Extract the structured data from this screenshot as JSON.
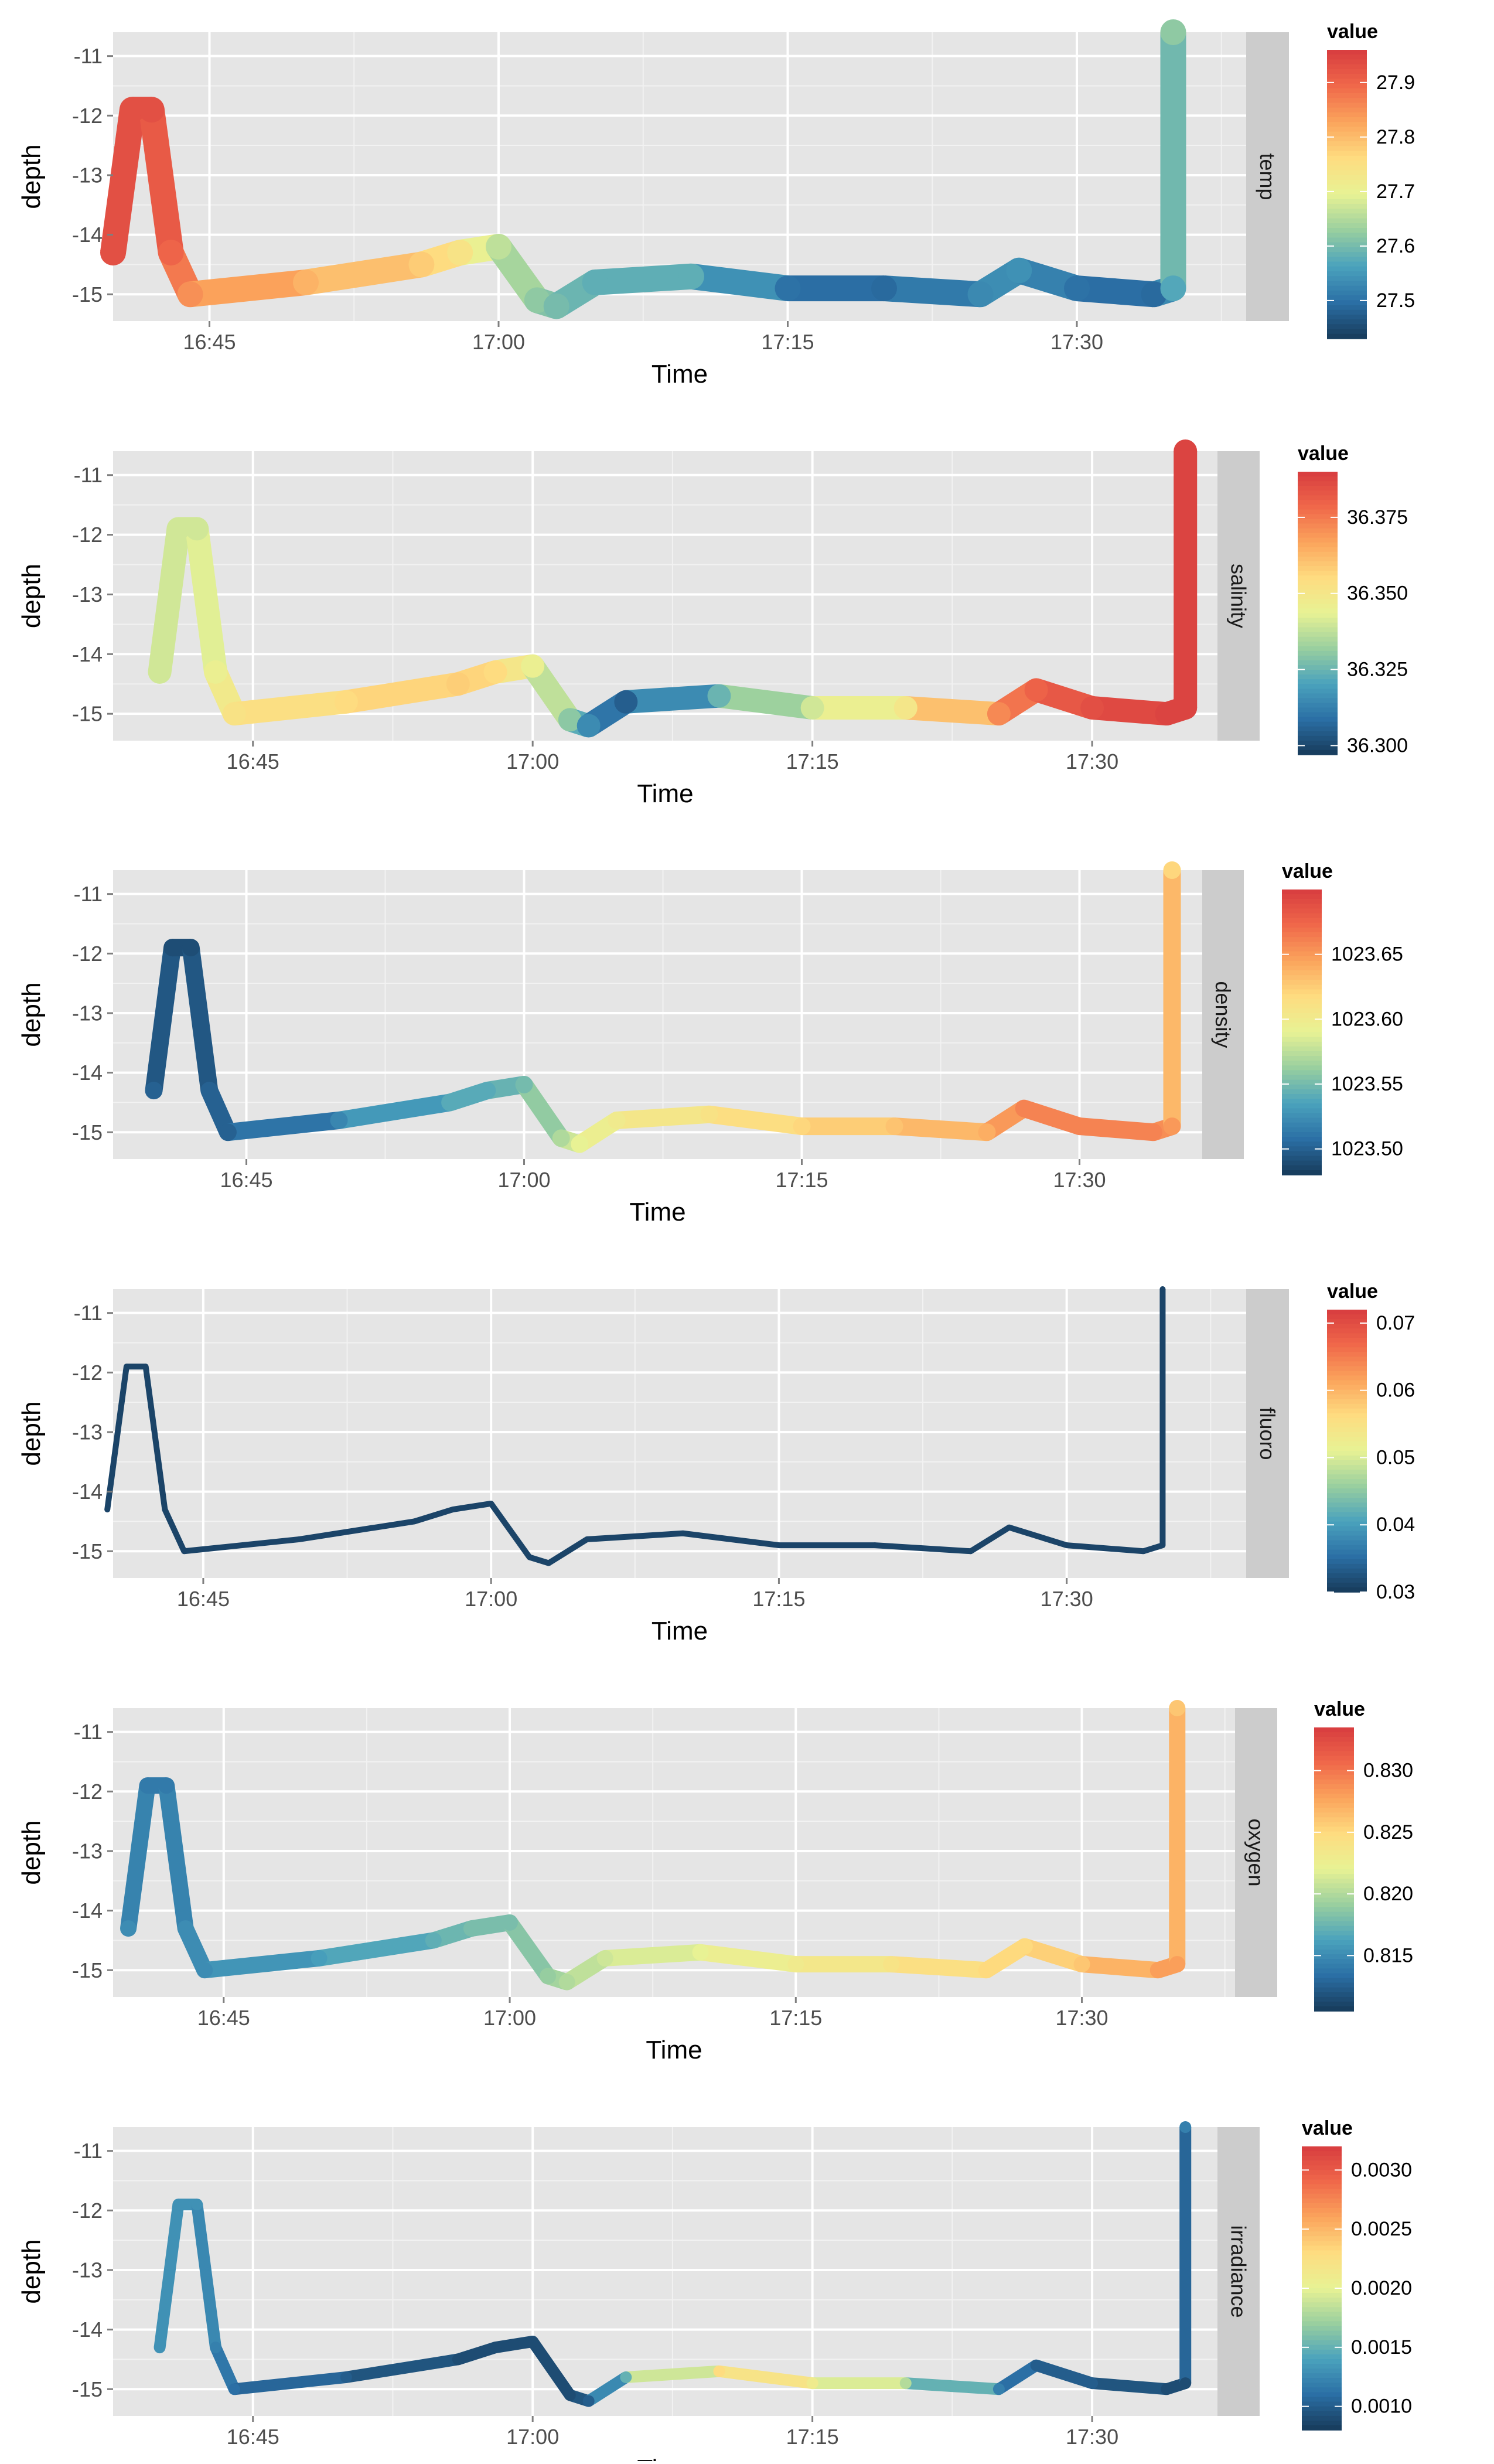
{
  "chart_data": [
    {
      "type": "line",
      "facet_label": "temp",
      "xlabel": "Time",
      "ylabel": "depth",
      "x_ticks": [
        "16:45",
        "17:00",
        "17:15",
        "17:30"
      ],
      "y_ticks": [
        "-11",
        "-12",
        "-13",
        "-14",
        "-15"
      ],
      "ylim": [
        -15.45,
        -10.6
      ],
      "legend": {
        "title": "value",
        "ticks": [
          "27.9",
          "27.8",
          "27.7",
          "27.6",
          "27.5"
        ],
        "tick_values": [
          27.9,
          27.8,
          27.7,
          27.6,
          27.5
        ],
        "range": [
          27.43,
          27.96
        ]
      },
      "series": [
        {
          "time": [
            "16:40",
            "16:41",
            "16:42",
            "16:43",
            "16:44",
            "16:50",
            "16:56",
            "16:58",
            "17:00",
            "17:02",
            "17:03",
            "17:05",
            "17:10",
            "17:15",
            "17:20",
            "17:25",
            "17:27",
            "17:30",
            "17:34",
            "17:35",
            "17:35"
          ],
          "depth": [
            -14.3,
            -11.9,
            -11.9,
            -14.3,
            -15.0,
            -14.8,
            -14.5,
            -14.3,
            -14.2,
            -15.1,
            -15.2,
            -14.8,
            -14.7,
            -14.9,
            -14.9,
            -15.0,
            -14.6,
            -14.9,
            -15.0,
            -14.9,
            -10.6
          ],
          "value": [
            27.93,
            27.93,
            27.93,
            27.9,
            27.85,
            27.81,
            27.78,
            27.74,
            27.66,
            27.62,
            27.6,
            27.58,
            27.58,
            27.5,
            27.49,
            27.53,
            27.54,
            27.5,
            27.49,
            27.57,
            27.62
          ]
        }
      ]
    },
    {
      "type": "line",
      "facet_label": "salinity",
      "xlabel": "Time",
      "ylabel": "depth",
      "x_ticks": [
        "16:45",
        "17:00",
        "17:15",
        "17:30"
      ],
      "y_ticks": [
        "-11",
        "-12",
        "-13",
        "-14",
        "-15"
      ],
      "ylim": [
        -15.45,
        -10.6
      ],
      "legend": {
        "title": "value",
        "ticks": [
          "36.375",
          "36.350",
          "36.325",
          "36.300"
        ],
        "tick_values": [
          36.375,
          36.35,
          36.325,
          36.3
        ],
        "range": [
          36.297,
          36.39
        ]
      },
      "series": [
        {
          "time": [
            "16:40",
            "16:41",
            "16:42",
            "16:43",
            "16:44",
            "16:50",
            "16:56",
            "16:58",
            "17:00",
            "17:02",
            "17:03",
            "17:05",
            "17:10",
            "17:15",
            "17:20",
            "17:25",
            "17:27",
            "17:30",
            "17:34",
            "17:35",
            "17:35"
          ],
          "depth": [
            -14.3,
            -11.9,
            -11.9,
            -14.3,
            -15.0,
            -14.8,
            -14.5,
            -14.3,
            -14.2,
            -15.1,
            -15.2,
            -14.8,
            -14.7,
            -14.9,
            -14.9,
            -15.0,
            -14.6,
            -14.9,
            -15.0,
            -14.9,
            -10.6
          ],
          "value": [
            36.34,
            36.34,
            36.34,
            36.345,
            36.352,
            36.355,
            36.358,
            36.355,
            36.345,
            36.33,
            36.315,
            36.305,
            36.325,
            36.34,
            36.35,
            36.372,
            36.38,
            36.385,
            36.388,
            36.388,
            36.388
          ]
        }
      ]
    },
    {
      "type": "line",
      "facet_label": "density",
      "xlabel": "Time",
      "ylabel": "depth",
      "x_ticks": [
        "16:45",
        "17:00",
        "17:15",
        "17:30"
      ],
      "y_ticks": [
        "-11",
        "-12",
        "-13",
        "-14",
        "-15"
      ],
      "ylim": [
        -15.45,
        -10.6
      ],
      "legend": {
        "title": "value",
        "ticks": [
          "1023.65",
          "1023.60",
          "1023.55",
          "1023.50"
        ],
        "tick_values": [
          1023.65,
          1023.6,
          1023.55,
          1023.5
        ],
        "range": [
          1023.48,
          1023.7
        ]
      },
      "series": [
        {
          "time": [
            "16:40",
            "16:41",
            "16:42",
            "16:43",
            "16:44",
            "16:50",
            "16:56",
            "16:58",
            "17:00",
            "17:02",
            "17:03",
            "17:05",
            "17:10",
            "17:15",
            "17:20",
            "17:25",
            "17:27",
            "17:30",
            "17:34",
            "17:35",
            "17:35"
          ],
          "depth": [
            -14.3,
            -11.9,
            -11.9,
            -14.3,
            -15.0,
            -14.8,
            -14.5,
            -14.3,
            -14.2,
            -15.1,
            -15.2,
            -14.8,
            -14.7,
            -14.9,
            -14.9,
            -15.0,
            -14.6,
            -14.9,
            -15.0,
            -14.9,
            -10.6
          ],
          "value": [
            1023.5,
            1023.49,
            1023.49,
            1023.5,
            1023.5,
            1023.52,
            1023.54,
            1023.54,
            1023.55,
            1023.57,
            1023.59,
            1023.6,
            1023.61,
            1023.62,
            1023.63,
            1023.64,
            1023.66,
            1023.66,
            1023.66,
            1023.65,
            1023.62
          ]
        }
      ]
    },
    {
      "type": "line",
      "facet_label": "fluoro",
      "xlabel": "Time",
      "ylabel": "depth",
      "x_ticks": [
        "16:45",
        "17:00",
        "17:15",
        "17:30"
      ],
      "y_ticks": [
        "-11",
        "-12",
        "-13",
        "-14",
        "-15"
      ],
      "ylim": [
        -15.45,
        -10.6
      ],
      "legend": {
        "title": "value",
        "ticks": [
          "0.07",
          "0.06",
          "0.05",
          "0.04",
          "0.03"
        ],
        "tick_values": [
          0.07,
          0.06,
          0.05,
          0.04,
          0.03
        ],
        "range": [
          0.03,
          0.072
        ]
      },
      "series": [
        {
          "time": [
            "16:40",
            "16:41",
            "16:42",
            "16:43",
            "16:44",
            "16:50",
            "16:56",
            "16:58",
            "17:00",
            "17:02",
            "17:03",
            "17:05",
            "17:10",
            "17:15",
            "17:20",
            "17:25",
            "17:27",
            "17:30",
            "17:34",
            "17:35",
            "17:35"
          ],
          "depth": [
            -14.3,
            -11.9,
            -11.9,
            -14.3,
            -15.0,
            -14.8,
            -14.5,
            -14.3,
            -14.2,
            -15.1,
            -15.2,
            -14.8,
            -14.7,
            -14.9,
            -14.9,
            -15.0,
            -14.6,
            -14.9,
            -15.0,
            -14.9,
            -10.6
          ],
          "value": [
            0.031,
            0.031,
            0.031,
            0.031,
            0.031,
            0.031,
            0.031,
            0.031,
            0.031,
            0.031,
            0.031,
            0.031,
            0.031,
            0.031,
            0.031,
            0.031,
            0.031,
            0.031,
            0.031,
            0.031,
            0.031
          ]
        }
      ]
    },
    {
      "type": "line",
      "facet_label": "oxygen",
      "xlabel": "Time",
      "ylabel": "depth",
      "x_ticks": [
        "16:45",
        "17:00",
        "17:15",
        "17:30"
      ],
      "y_ticks": [
        "-11",
        "-12",
        "-13",
        "-14",
        "-15"
      ],
      "ylim": [
        -15.45,
        -10.6
      ],
      "legend": {
        "title": "value",
        "ticks": [
          "0.830",
          "0.825",
          "0.820",
          "0.815"
        ],
        "tick_values": [
          0.83,
          0.825,
          0.82,
          0.815
        ],
        "range": [
          0.8105,
          0.8335
        ]
      },
      "series": [
        {
          "time": [
            "16:40",
            "16:41",
            "16:42",
            "16:43",
            "16:44",
            "16:50",
            "16:56",
            "16:58",
            "17:00",
            "17:02",
            "17:03",
            "17:05",
            "17:10",
            "17:15",
            "17:20",
            "17:25",
            "17:27",
            "17:30",
            "17:34",
            "17:35",
            "17:35"
          ],
          "depth": [
            -14.3,
            -11.9,
            -11.9,
            -14.3,
            -15.0,
            -14.8,
            -14.5,
            -14.3,
            -14.2,
            -15.1,
            -15.2,
            -14.8,
            -14.7,
            -14.9,
            -14.9,
            -15.0,
            -14.6,
            -14.9,
            -15.0,
            -14.9,
            -10.6
          ],
          "value": [
            0.815,
            0.814,
            0.814,
            0.815,
            0.815,
            0.816,
            0.817,
            0.818,
            0.818,
            0.819,
            0.82,
            0.821,
            0.822,
            0.823,
            0.824,
            0.825,
            0.825,
            0.826,
            0.828,
            0.828,
            0.826
          ]
        }
      ]
    },
    {
      "type": "line",
      "facet_label": "irradiance",
      "xlabel": "Time",
      "ylabel": "depth",
      "x_ticks": [
        "16:45",
        "17:00",
        "17:15",
        "17:30"
      ],
      "y_ticks": [
        "-11",
        "-12",
        "-13",
        "-14",
        "-15"
      ],
      "ylim": [
        -15.45,
        -10.6
      ],
      "legend": {
        "title": "value",
        "ticks": [
          "0.0030",
          "0.0025",
          "0.0020",
          "0.0015",
          "0.0010"
        ],
        "tick_values": [
          0.003,
          0.0025,
          0.002,
          0.0015,
          0.001
        ],
        "range": [
          0.0008,
          0.0032
        ]
      },
      "series": [
        {
          "time": [
            "16:40",
            "16:41",
            "16:42",
            "16:43",
            "16:44",
            "16:50",
            "16:56",
            "16:58",
            "17:00",
            "17:02",
            "17:03",
            "17:05",
            "17:10",
            "17:15",
            "17:20",
            "17:25",
            "17:27",
            "17:30",
            "17:34",
            "17:35",
            "17:35"
          ],
          "depth": [
            -14.3,
            -11.9,
            -11.9,
            -14.3,
            -15.0,
            -14.8,
            -14.5,
            -14.3,
            -14.2,
            -15.1,
            -15.2,
            -14.8,
            -14.7,
            -14.9,
            -14.9,
            -15.0,
            -14.6,
            -14.9,
            -15.0,
            -14.9,
            -10.6
          ],
          "value": [
            0.0013,
            0.0013,
            0.0013,
            0.0012,
            0.0011,
            0.001,
            0.0009,
            0.0009,
            0.0009,
            0.0009,
            0.001,
            0.0015,
            0.0023,
            0.0021,
            0.0018,
            0.0012,
            0.001,
            0.001,
            0.0009,
            0.0009,
            0.0012
          ]
        }
      ]
    }
  ]
}
